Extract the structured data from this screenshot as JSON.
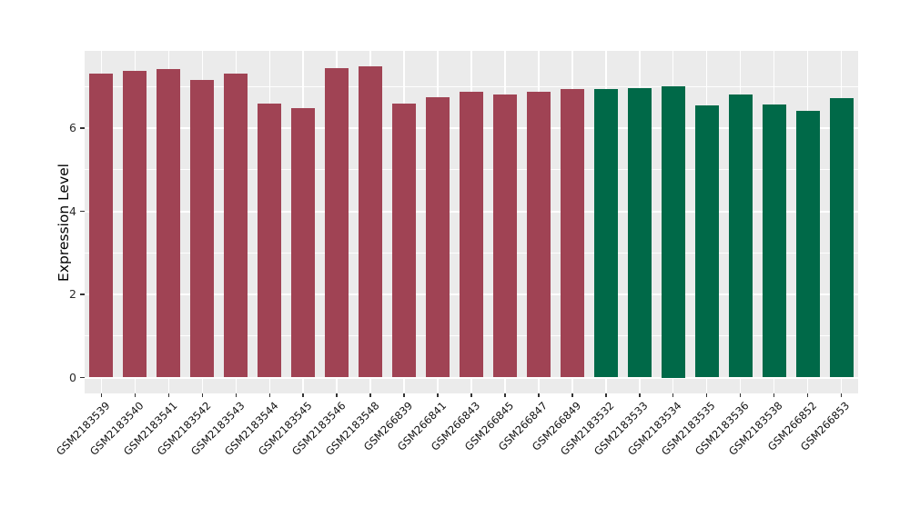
{
  "chart_data": {
    "type": "bar",
    "title": "",
    "xlabel": "",
    "ylabel": "Expression Level",
    "ylim": [
      0,
      7.86
    ],
    "yticks": [
      0,
      2,
      4,
      6
    ],
    "minor_yticks": [
      1,
      3,
      5,
      7
    ],
    "grid": "on",
    "legend_position": "none",
    "panel_background": "#EBEBEB",
    "grid_color": "#FFFFFF",
    "group_colors": {
      "group_1": "#A04354",
      "group_2": "#006948"
    },
    "categories": [
      "GSM2183539",
      "GSM2183540",
      "GSM2183541",
      "GSM2183542",
      "GSM2183543",
      "GSM2183544",
      "GSM2183545",
      "GSM2183546",
      "GSM2183548",
      "GSM266839",
      "GSM266841",
      "GSM266843",
      "GSM266845",
      "GSM266847",
      "GSM266849",
      "GSM2183532",
      "GSM2183533",
      "GSM2183534",
      "GSM2183535",
      "GSM2183536",
      "GSM2183538",
      "GSM266852",
      "GSM266853"
    ],
    "values": [
      7.32,
      7.38,
      7.43,
      7.15,
      7.31,
      6.58,
      6.48,
      7.45,
      7.49,
      6.58,
      6.74,
      6.88,
      6.81,
      6.88,
      6.93,
      6.93,
      6.97,
      7.0,
      6.55,
      6.81,
      6.57,
      6.42,
      6.72
    ],
    "bar_colors": [
      "#A04354",
      "#A04354",
      "#A04354",
      "#A04354",
      "#A04354",
      "#A04354",
      "#A04354",
      "#A04354",
      "#A04354",
      "#A04354",
      "#A04354",
      "#A04354",
      "#A04354",
      "#A04354",
      "#A04354",
      "#006948",
      "#006948",
      "#006948",
      "#006948",
      "#006948",
      "#006948",
      "#006948",
      "#006948"
    ]
  }
}
